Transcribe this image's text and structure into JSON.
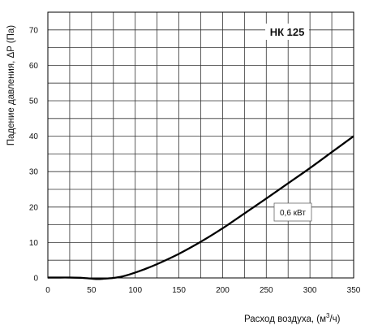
{
  "chart_data": {
    "type": "line",
    "title": "НК 125",
    "xlabel_main": "Расход воздуха, (м",
    "xlabel_sup": "3",
    "xlabel_end": "/ч)",
    "ylabel": "Падение давления, ΔP (Па)",
    "xlim": [
      0,
      350
    ],
    "ylim": [
      0,
      75
    ],
    "x_ticks": [
      0,
      50,
      100,
      150,
      200,
      250,
      300,
      350
    ],
    "y_ticks": [
      0,
      10,
      20,
      30,
      40,
      50,
      60,
      70
    ],
    "x_minor_step": 25,
    "y_minor_step": 5,
    "grid": true,
    "series": [
      {
        "name": "0,6 кВт",
        "color": "#000000",
        "points": [
          [
            0,
            0.1
          ],
          [
            10,
            0.1
          ],
          [
            25,
            0.1
          ],
          [
            40,
            0
          ],
          [
            55,
            -0.3
          ],
          [
            65,
            -0.2
          ],
          [
            75,
            0
          ],
          [
            85,
            0.4
          ],
          [
            95,
            1.1
          ],
          [
            110,
            2.4
          ],
          [
            125,
            3.9
          ],
          [
            150,
            6.8
          ],
          [
            175,
            10.2
          ],
          [
            200,
            14.0
          ],
          [
            225,
            18.2
          ],
          [
            250,
            22.4
          ],
          [
            275,
            26.7
          ],
          [
            300,
            31.0
          ],
          [
            325,
            35.5
          ],
          [
            350,
            40.0
          ]
        ]
      }
    ]
  }
}
